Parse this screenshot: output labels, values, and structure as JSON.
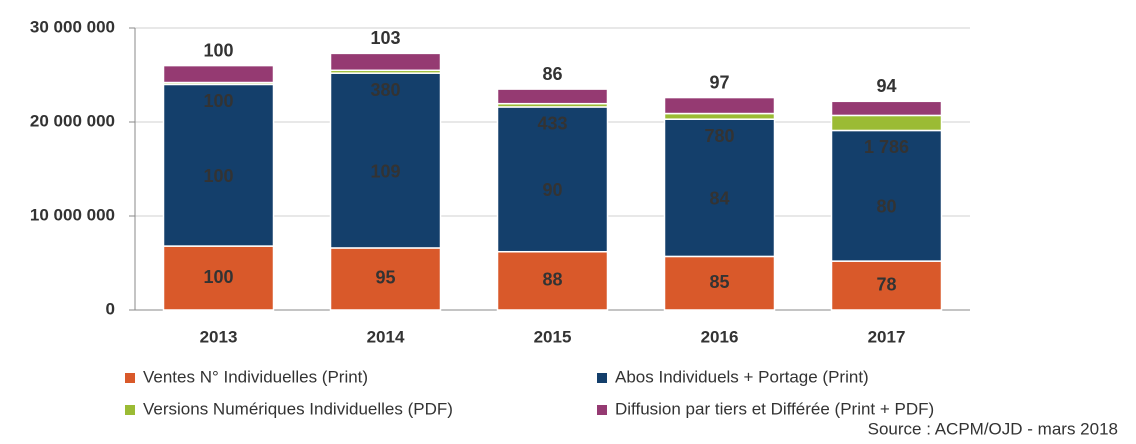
{
  "chart_data": {
    "type": "stacked_bar",
    "source": "Source : ACPM/OJD - mars 2018",
    "categories": [
      "2013",
      "2014",
      "2015",
      "2016",
      "2017"
    ],
    "series": [
      {
        "name": "Ventes N° Individuelles (Print)",
        "color": "#d9592a",
        "label_color": "#ffffff",
        "values": [
          6800000,
          6600000,
          6200000,
          5700000,
          5200000
        ],
        "index_values": [
          100,
          95,
          88,
          85,
          78
        ]
      },
      {
        "name": "Abos Individuels + Portage (Print)",
        "color": "#143f6b",
        "label_color": "#ffffff",
        "values": [
          17200000,
          18600000,
          15400000,
          14600000,
          13900000
        ],
        "index_values": [
          100,
          109,
          90,
          84,
          80
        ]
      },
      {
        "name": "Versions Numériques Individuelles (PDF)",
        "color": "#9bbb34",
        "label_color": "#8fc02c",
        "values": [
          200000,
          300000,
          350000,
          600000,
          1600000
        ],
        "index_values": [
          {
            "value": 100,
            "label": "100"
          },
          {
            "value": 380,
            "label": "380"
          },
          {
            "value": 433,
            "label": "433"
          },
          {
            "value": 780,
            "label": "780"
          },
          {
            "value": 1786,
            "label": "1 786"
          }
        ]
      },
      {
        "name": "Diffusion par tiers et Différée (Print + PDF)",
        "color": "#953a72",
        "label_color": "#8a2f63",
        "values": [
          1800000,
          1800000,
          1550000,
          1700000,
          1500000
        ],
        "index_values": [
          100,
          103,
          86,
          97,
          94
        ]
      }
    ],
    "ylim": [
      0,
      30000000
    ],
    "yticks": [
      0,
      {
        "value": 10000000,
        "label": "10 000 000"
      },
      {
        "value": 20000000,
        "label": "20 000 000"
      },
      {
        "value": 30000000,
        "label": "30 000 000"
      }
    ],
    "grid": true
  }
}
